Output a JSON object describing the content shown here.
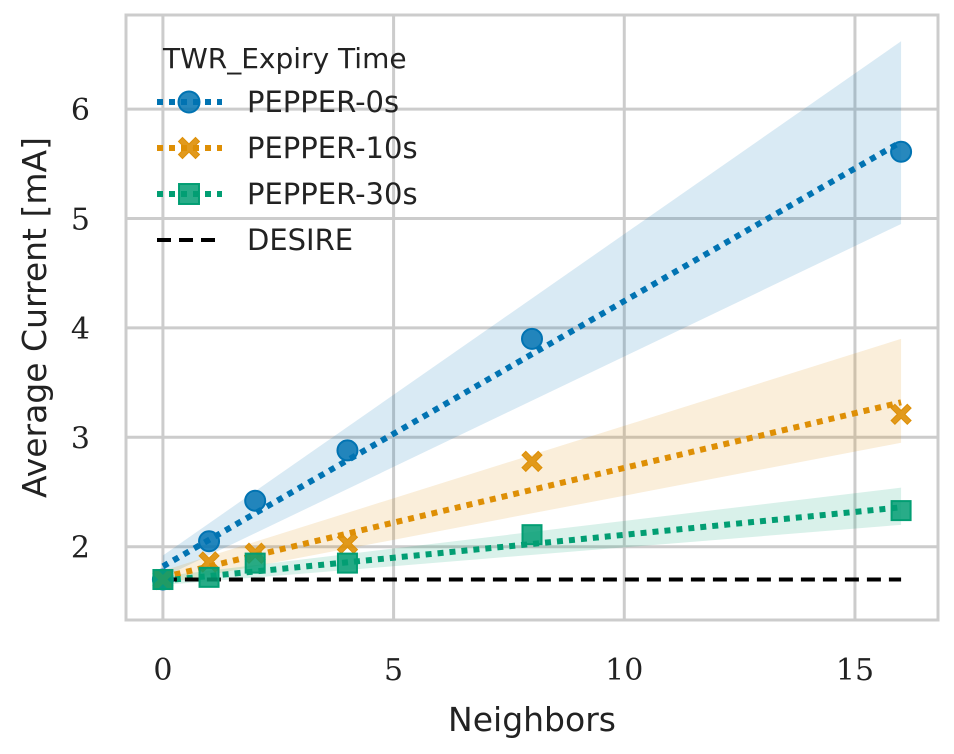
{
  "chart_data": {
    "type": "line",
    "title": "",
    "xlabel": "Neighbors",
    "ylabel": "Average Current [mA]",
    "xlim": [
      -0.8,
      16.8
    ],
    "ylim": [
      1.33,
      6.86
    ],
    "x_ticks": [
      0,
      5,
      10,
      15
    ],
    "y_ticks": [
      2,
      3,
      4,
      5,
      6
    ],
    "grid": true,
    "legend": {
      "title": "TWR_Expiry Time",
      "position": "top-left"
    },
    "x": [
      0,
      1,
      2,
      4,
      8,
      16
    ],
    "series": [
      {
        "name": "PEPPER-0s",
        "color": "#0173b2",
        "marker": "circle",
        "values": [
          1.7,
          2.05,
          2.42,
          2.88,
          3.9,
          5.61
        ],
        "fit": [
          1.82,
          5.7
        ],
        "band_lower": [
          1.72,
          4.95
        ],
        "band_upper": [
          1.92,
          6.62
        ]
      },
      {
        "name": "PEPPER-10s",
        "color": "#de8f05",
        "marker": "x",
        "values": [
          1.7,
          1.86,
          1.94,
          2.03,
          2.78,
          3.21
        ],
        "fit": [
          1.72,
          3.32
        ],
        "band_lower": [
          1.66,
          2.95
        ],
        "band_upper": [
          1.78,
          3.9
        ]
      },
      {
        "name": "PEPPER-30s",
        "color": "#029e73",
        "marker": "square",
        "values": [
          1.7,
          1.72,
          1.85,
          1.85,
          2.11,
          2.33
        ],
        "fit": [
          1.69,
          2.36
        ],
        "band_lower": [
          1.65,
          2.2
        ],
        "band_upper": [
          1.73,
          2.54
        ]
      },
      {
        "name": "DESIRE",
        "color": "#000000",
        "marker": "none",
        "constant": 1.7
      }
    ]
  }
}
